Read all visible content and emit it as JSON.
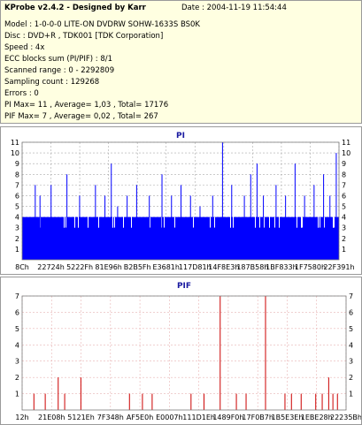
{
  "info": {
    "title": "KProbe v2.4.2 - Designed by Karr",
    "date": "Date : 2004-11-19 11:54:44",
    "lines": [
      "Model : 1-0-0-0 LITE-ON DVDRW SOHW-1633S BS0K",
      "Disc : DVD+R , TDK001 [TDK Corporation]",
      "Speed : 4x",
      "ECC blocks sum (PI/PIF) : 8/1",
      "Scanned range : 0 - 2292809",
      "Sampling count : 129268",
      "Errors : 0",
      "PI Max= 11 , Average= 1,03 , Total= 17176",
      "PIF Max= 7 , Average= 0,02 , Total= 267"
    ]
  },
  "colors": {
    "pi_bar": "#0000ff",
    "pif_bar": "#cc0000",
    "grid_pi": "#aaaaaa",
    "grid_pif": "#e8b4b4",
    "title": "#1a1aa0"
  },
  "chart_data": [
    {
      "type": "bar",
      "title": "PI",
      "ylim": [
        0,
        11
      ],
      "yticks": [
        1,
        2,
        3,
        4,
        5,
        6,
        7,
        8,
        9,
        10,
        11
      ],
      "xticks": [
        "8Ch",
        "22724h",
        "5222Fh",
        "81E96h",
        "B2B5Fh",
        "E3681h",
        "117D81h",
        "14F8E3h",
        "187B58h",
        "1BF833h",
        "1F7580h",
        "22F391h"
      ],
      "baseline_max": 4,
      "spikes": [
        [
          0.04,
          7
        ],
        [
          0.055,
          6
        ],
        [
          0.09,
          7
        ],
        [
          0.14,
          8
        ],
        [
          0.18,
          6
        ],
        [
          0.23,
          7
        ],
        [
          0.26,
          6
        ],
        [
          0.28,
          9
        ],
        [
          0.3,
          5
        ],
        [
          0.33,
          6
        ],
        [
          0.36,
          7
        ],
        [
          0.4,
          6
        ],
        [
          0.44,
          8
        ],
        [
          0.47,
          6
        ],
        [
          0.5,
          7
        ],
        [
          0.53,
          6
        ],
        [
          0.56,
          5
        ],
        [
          0.6,
          6
        ],
        [
          0.631,
          11
        ],
        [
          0.66,
          7
        ],
        [
          0.7,
          6
        ],
        [
          0.72,
          8
        ],
        [
          0.74,
          9
        ],
        [
          0.76,
          6
        ],
        [
          0.8,
          7
        ],
        [
          0.83,
          6
        ],
        [
          0.86,
          9
        ],
        [
          0.89,
          6
        ],
        [
          0.92,
          7
        ],
        [
          0.95,
          8
        ],
        [
          0.97,
          6
        ],
        [
          0.99,
          10
        ]
      ]
    },
    {
      "type": "bar",
      "title": "PIF",
      "ylim": [
        0,
        7
      ],
      "yticks": [
        1,
        2,
        3,
        4,
        5,
        6,
        7
      ],
      "xticks": [
        "12h",
        "21E08h",
        "5121Eh",
        "7F348h",
        "AF5E0h",
        "E0007h",
        "111D1Eh",
        "1489F0h",
        "17F0B7h",
        "1B5E3Eh",
        "1EBE28h",
        "22235Bh"
      ],
      "spikes": [
        [
          0.035,
          1
        ],
        [
          0.07,
          1
        ],
        [
          0.11,
          2
        ],
        [
          0.13,
          1
        ],
        [
          0.18,
          2
        ],
        [
          0.33,
          1
        ],
        [
          0.37,
          1
        ],
        [
          0.4,
          1
        ],
        [
          0.52,
          1
        ],
        [
          0.56,
          1
        ],
        [
          0.61,
          7
        ],
        [
          0.66,
          1
        ],
        [
          0.69,
          1
        ],
        [
          0.75,
          7
        ],
        [
          0.81,
          1
        ],
        [
          0.83,
          1
        ],
        [
          0.86,
          1
        ],
        [
          0.905,
          1
        ],
        [
          0.925,
          1
        ],
        [
          0.945,
          2
        ],
        [
          0.958,
          1
        ],
        [
          0.972,
          1
        ]
      ]
    }
  ]
}
